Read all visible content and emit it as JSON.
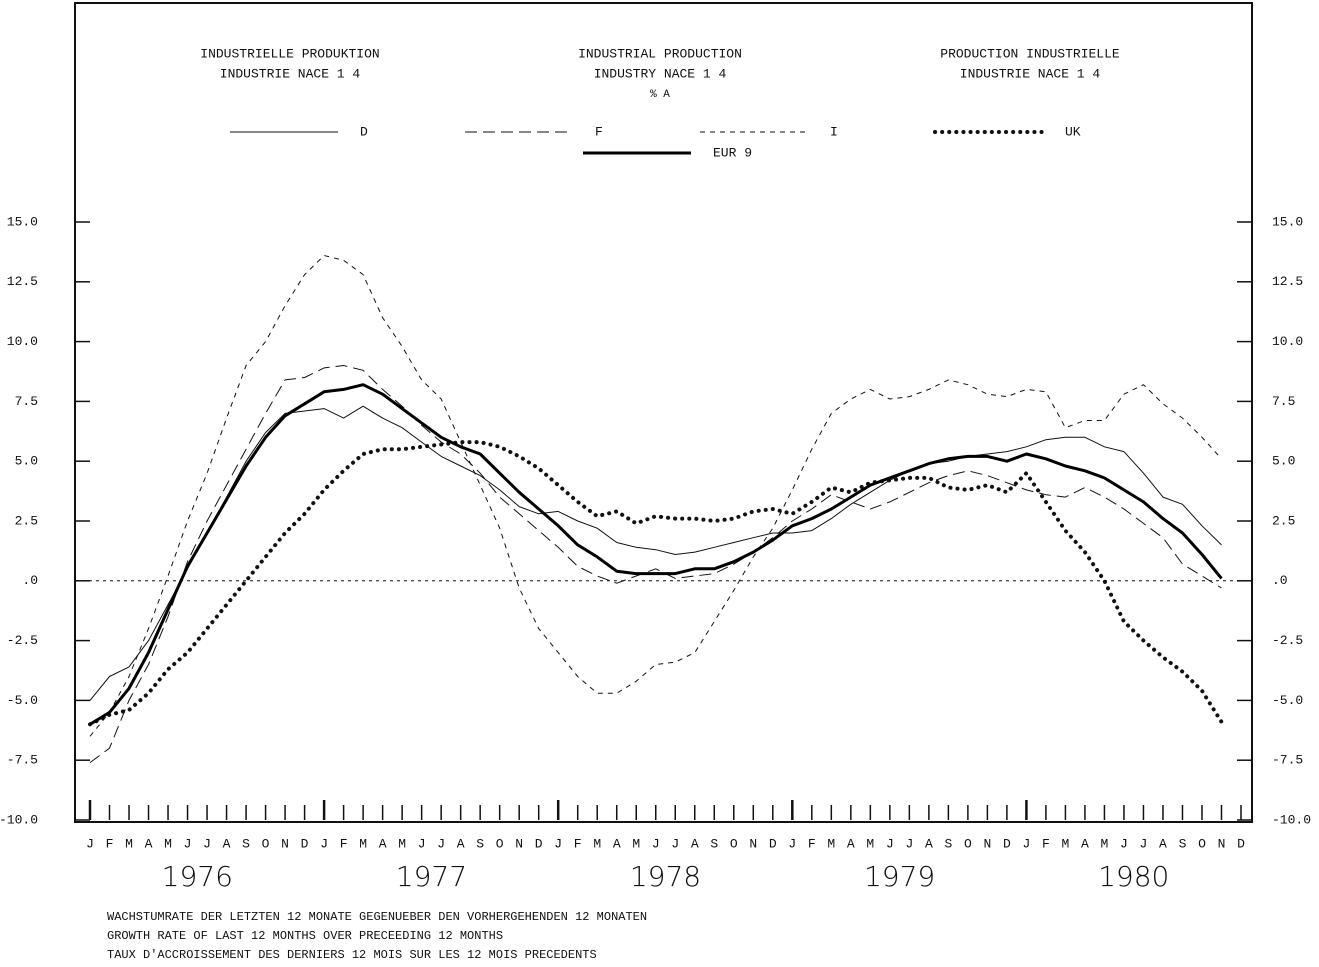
{
  "chart_data": {
    "type": "line",
    "titles": [
      [
        "INDUSTRIELLE PRODUKTION",
        "INDUSTRIE  NACE 1 4"
      ],
      [
        "INDUSTRIAL PRODUCTION",
        "INDUSTRY  NACE 1 4"
      ],
      [
        "PRODUCTION INDUSTRIELLE",
        "INDUSTRIE  NACE 1 4"
      ]
    ],
    "subtitle": "% A",
    "footer": [
      "WACHSTUMRATE DER LETZTEN 12 MONATE GEGENUEBER DEN VORHERGEHENDEN 12 MONATEN",
      "GROWTH RATE OF LAST 12 MONTHS OVER PRECEEDING 12 MONTHS",
      "TAUX D'ACCROISSEMENT DES DERNIERS 12 MOIS SUR LES 12 MOIS PRECEDENTS"
    ],
    "categories": [
      "J",
      "F",
      "M",
      "A",
      "M",
      "J",
      "J",
      "A",
      "S",
      "O",
      "N",
      "D",
      "J",
      "F",
      "M",
      "A",
      "M",
      "J",
      "J",
      "A",
      "S",
      "O",
      "N",
      "D",
      "J",
      "F",
      "M",
      "A",
      "M",
      "J",
      "J",
      "A",
      "S",
      "O",
      "N",
      "D",
      "J",
      "F",
      "M",
      "A",
      "M",
      "J",
      "J",
      "A",
      "S",
      "O",
      "N",
      "D",
      "J",
      "F",
      "M",
      "A",
      "M",
      "J",
      "J",
      "A",
      "S",
      "O",
      "N",
      "D"
    ],
    "years": [
      "1976",
      "1977",
      "1978",
      "1979",
      "1980"
    ],
    "ylim": [
      -10,
      15
    ],
    "yticks": [
      {
        "value": -10,
        "label": "-10.0"
      },
      {
        "value": -7.5,
        "label": "-7.5"
      },
      {
        "value": -5,
        "label": "-5.0"
      },
      {
        "value": -2.5,
        "label": "-2.5"
      },
      {
        "value": 0,
        "label": ".0"
      },
      {
        "value": 2.5,
        "label": "2.5"
      },
      {
        "value": 5,
        "label": "5.0"
      },
      {
        "value": 7.5,
        "label": "7.5"
      },
      {
        "value": 10,
        "label": "10.0"
      },
      {
        "value": 12.5,
        "label": "12.5"
      },
      {
        "value": 15,
        "label": "15.0"
      }
    ],
    "zero_line": true,
    "series": [
      {
        "name": "D",
        "color": "#111",
        "dash": "solid",
        "width": 1,
        "values": [
          -5.0,
          -4.0,
          -3.6,
          -2.5,
          -1.0,
          0.5,
          2.0,
          3.5,
          5.0,
          6.2,
          7.0,
          7.1,
          7.2,
          6.8,
          7.3,
          6.8,
          6.4,
          5.8,
          5.2,
          4.8,
          4.4,
          3.8,
          3.1,
          2.8,
          2.9,
          2.5,
          2.2,
          1.6,
          1.4,
          1.3,
          1.1,
          1.2,
          1.4,
          1.6,
          1.8,
          2.0,
          2.0,
          2.1,
          2.6,
          3.2,
          3.7,
          4.2,
          4.6,
          4.9,
          5.0,
          5.2,
          5.3,
          5.4,
          5.6,
          5.9,
          6.0,
          6.0,
          5.6,
          5.4,
          4.5,
          3.5,
          3.2,
          2.3,
          1.5,
          null
        ]
      },
      {
        "name": "F",
        "color": "#111",
        "dash": "long-dash",
        "width": 1,
        "values": [
          -7.6,
          -7.0,
          -5.0,
          -3.5,
          -1.5,
          0.8,
          2.5,
          4.0,
          5.5,
          7.0,
          8.4,
          8.5,
          8.9,
          9.0,
          8.8,
          8.0,
          7.3,
          6.5,
          5.8,
          5.3,
          4.5,
          3.5,
          2.8,
          2.1,
          1.4,
          0.6,
          0.2,
          -0.1,
          0.2,
          0.5,
          0.1,
          0.2,
          0.3,
          0.7,
          1.2,
          1.8,
          2.5,
          3.0,
          3.6,
          3.3,
          3.0,
          3.3,
          3.7,
          4.1,
          4.4,
          4.6,
          4.4,
          4.1,
          3.8,
          3.6,
          3.5,
          3.9,
          3.5,
          3.0,
          2.4,
          1.8,
          0.7,
          0.2,
          -0.3,
          null
        ]
      },
      {
        "name": "I",
        "color": "#111",
        "dash": "short-dash",
        "width": 1,
        "values": [
          -6.5,
          -5.5,
          -4.0,
          -2.0,
          0.2,
          2.5,
          4.5,
          6.8,
          9.0,
          10.0,
          11.5,
          12.8,
          13.6,
          13.4,
          12.8,
          11.0,
          9.8,
          8.4,
          7.6,
          5.8,
          4.0,
          2.2,
          -0.3,
          -2.0,
          -3.0,
          -4.0,
          -4.7,
          -4.7,
          -4.2,
          -3.5,
          -3.4,
          -3.0,
          -1.7,
          -0.4,
          1.0,
          2.2,
          3.8,
          5.5,
          7.0,
          7.6,
          8.0,
          7.6,
          7.7,
          8.0,
          8.4,
          8.2,
          7.8,
          7.7,
          8.0,
          7.9,
          6.4,
          6.7,
          6.7,
          7.8,
          8.2,
          7.4,
          6.8,
          6.0,
          5.1,
          null
        ]
      },
      {
        "name": "UK",
        "color": "#111",
        "dash": "dotted",
        "width": 4,
        "values": [
          -6.0,
          -5.6,
          -5.4,
          -4.7,
          -3.7,
          -3.0,
          -2.0,
          -1.0,
          0.0,
          1.0,
          2.0,
          2.8,
          3.8,
          4.6,
          5.3,
          5.5,
          5.5,
          5.6,
          5.7,
          5.8,
          5.8,
          5.6,
          5.2,
          4.7,
          4.0,
          3.3,
          2.7,
          2.9,
          2.4,
          2.7,
          2.6,
          2.6,
          2.5,
          2.6,
          2.9,
          3.0,
          2.8,
          3.3,
          3.9,
          3.7,
          4.1,
          4.2,
          4.3,
          4.3,
          3.9,
          3.8,
          4.0,
          3.7,
          4.5,
          3.3,
          2.1,
          1.2,
          0.0,
          -1.7,
          -2.5,
          -3.2,
          -3.8,
          -4.6,
          -5.9,
          null
        ]
      },
      {
        "name": "EUR 9",
        "color": "#000",
        "dash": "solid",
        "width": 3,
        "values": [
          -6.0,
          -5.5,
          -4.5,
          -3.0,
          -1.2,
          0.6,
          2.0,
          3.4,
          4.8,
          6.0,
          6.9,
          7.4,
          7.9,
          8.0,
          8.2,
          7.8,
          7.2,
          6.6,
          6.0,
          5.6,
          5.3,
          4.5,
          3.7,
          3.0,
          2.3,
          1.5,
          1.0,
          0.4,
          0.3,
          0.3,
          0.3,
          0.5,
          0.5,
          0.8,
          1.2,
          1.7,
          2.3,
          2.6,
          3.0,
          3.5,
          4.0,
          4.3,
          4.6,
          4.9,
          5.1,
          5.2,
          5.2,
          5.0,
          5.3,
          5.1,
          4.8,
          4.6,
          4.3,
          3.8,
          3.3,
          2.6,
          2.0,
          1.1,
          0.1,
          null
        ]
      }
    ]
  }
}
